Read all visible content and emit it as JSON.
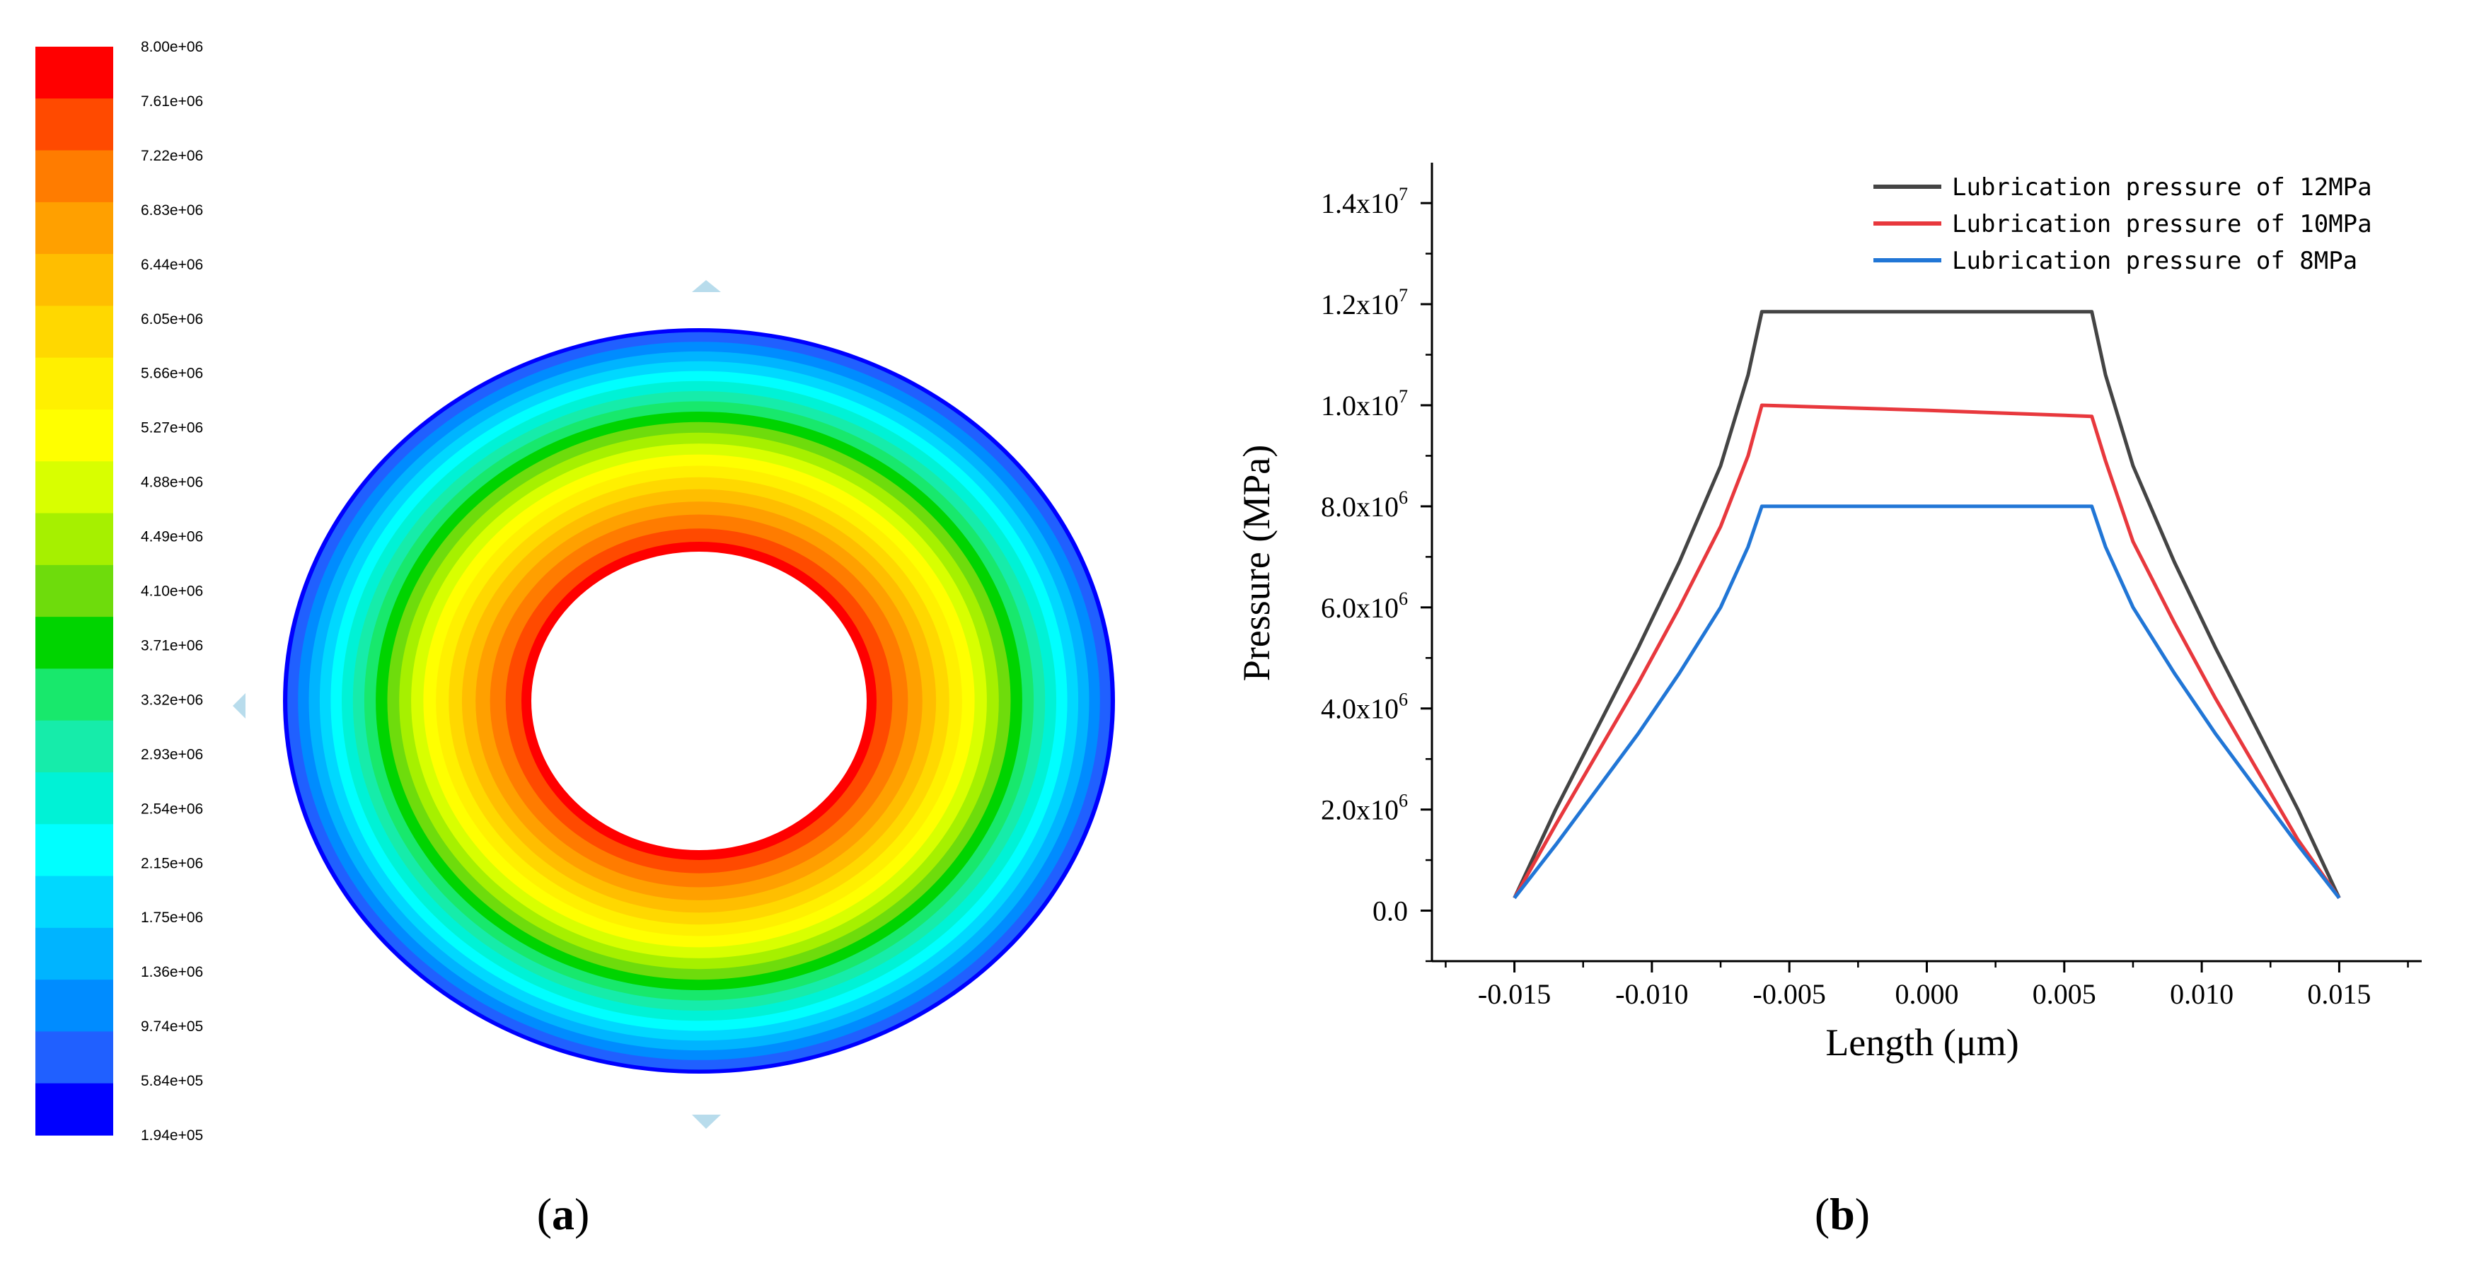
{
  "panel_a": {
    "label_open": "(",
    "label_letter": "a",
    "label_close": ")",
    "colorbar": {
      "labels": [
        "8.00e+06",
        "7.61e+06",
        "7.22e+06",
        "6.83e+06",
        "6.44e+06",
        "6.05e+06",
        "5.66e+06",
        "5.27e+06",
        "4.88e+06",
        "4.49e+06",
        "4.10e+06",
        "3.71e+06",
        "3.32e+06",
        "2.93e+06",
        "2.54e+06",
        "2.15e+06",
        "1.75e+06",
        "1.36e+06",
        "9.74e+05",
        "5.84e+05",
        "1.94e+05"
      ],
      "colors": [
        "#ff0000",
        "#ff4a00",
        "#ff7c00",
        "#ffa000",
        "#ffbe00",
        "#ffd800",
        "#fff000",
        "#ffff00",
        "#d8ff00",
        "#a6f000",
        "#6edc0c",
        "#00d400",
        "#18e86c",
        "#16ecaa",
        "#00f2d6",
        "#00ffff",
        "#00d8ff",
        "#00b4ff",
        "#008cff",
        "#2060ff",
        "#0000ff"
      ]
    },
    "ring": {
      "value_max": 8000000,
      "value_min": 194000
    }
  },
  "panel_b": {
    "label_open": "(",
    "label_letter": "b",
    "label_close": ")"
  },
  "chart_data": {
    "type": "line",
    "title": "",
    "xlabel": "Length (μm)",
    "ylabel": "Pressure (MPa)",
    "xlim": [
      -0.018,
      0.018
    ],
    "ylim": [
      -1000000,
      14800000
    ],
    "x_ticks": [
      -0.015,
      -0.01,
      -0.005,
      0.0,
      0.005,
      0.01,
      0.015
    ],
    "x_tick_labels": [
      "-0.015",
      "-0.010",
      "-0.005",
      "0.000",
      "0.005",
      "0.010",
      "0.015"
    ],
    "y_ticks": [
      0,
      2000000,
      4000000,
      6000000,
      8000000,
      10000000,
      12000000,
      14000000
    ],
    "y_tick_labels": [
      {
        "mantissa": "0.0",
        "exp": ""
      },
      {
        "mantissa": "2.0x10",
        "exp": "6"
      },
      {
        "mantissa": "4.0x10",
        "exp": "6"
      },
      {
        "mantissa": "6.0x10",
        "exp": "6"
      },
      {
        "mantissa": "8.0x10",
        "exp": "6"
      },
      {
        "mantissa": "1.0x10",
        "exp": "7"
      },
      {
        "mantissa": "1.2x10",
        "exp": "7"
      },
      {
        "mantissa": "1.4x10",
        "exp": "7"
      }
    ],
    "legend_position": "top-right",
    "series": [
      {
        "name": "Lubrication pressure of 12MPa",
        "color": "#444444",
        "x": [
          -0.015,
          -0.0135,
          -0.012,
          -0.0105,
          -0.009,
          -0.0075,
          -0.0065,
          -0.006,
          0.006,
          0.0065,
          0.0075,
          0.009,
          0.0105,
          0.012,
          0.0135,
          0.015
        ],
        "y": [
          250000,
          2000000,
          3600000,
          5200000,
          6900000,
          8800000,
          10600000,
          11850000,
          11850000,
          10600000,
          8800000,
          6900000,
          5200000,
          3600000,
          2000000,
          250000
        ]
      },
      {
        "name": "Lubrication pressure of 10MPa",
        "color": "#e8383d",
        "x": [
          -0.015,
          -0.0135,
          -0.012,
          -0.0105,
          -0.009,
          -0.0075,
          -0.0065,
          -0.006,
          0.0,
          0.006,
          0.0065,
          0.0075,
          0.009,
          0.0105,
          0.012,
          0.0135,
          0.015
        ],
        "y": [
          250000,
          1700000,
          3100000,
          4500000,
          6000000,
          7600000,
          9000000,
          10000000,
          9900000,
          9780000,
          8900000,
          7300000,
          5700000,
          4200000,
          2800000,
          1400000,
          250000
        ]
      },
      {
        "name": "Lubrication pressure of 8MPa",
        "color": "#2176d6",
        "x": [
          -0.015,
          -0.0135,
          -0.012,
          -0.0105,
          -0.009,
          -0.0075,
          -0.0065,
          -0.006,
          0.006,
          0.0065,
          0.0075,
          0.009,
          0.0105,
          0.012,
          0.0135,
          0.015
        ],
        "y": [
          250000,
          1300000,
          2400000,
          3500000,
          4700000,
          6000000,
          7200000,
          8000000,
          8000000,
          7200000,
          6000000,
          4700000,
          3500000,
          2400000,
          1300000,
          250000
        ]
      }
    ]
  }
}
